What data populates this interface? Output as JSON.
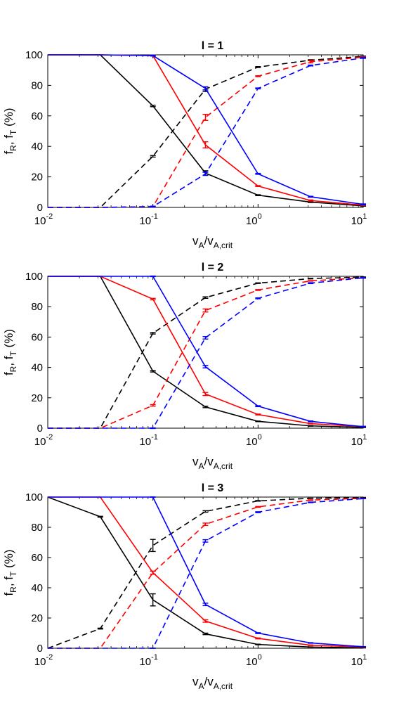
{
  "chart_data": [
    {
      "type": "line",
      "title": "l = 1",
      "xlabel": "vA/vA,crit",
      "ylabel": "fR, fT (%)",
      "x_scale": "log",
      "xlim": [
        0.01,
        10
      ],
      "ylim": [
        0,
        100
      ],
      "x_tick_labels": [
        "10",
        "10",
        "10"
      ],
      "x_tick_exponents": [
        "-2",
        "-1",
        "0"
      ],
      "x_tick_exponent_last": "1",
      "y_tick_labels": [
        "0",
        "20",
        "40",
        "60",
        "80",
        "100"
      ],
      "grid": false,
      "x": [
        0.01,
        0.0316,
        0.1,
        0.316,
        1.0,
        3.16,
        10.0
      ],
      "series": [
        {
          "color": "#000000",
          "dash": false,
          "values": [
            100,
            100,
            66.5,
            22.5,
            8,
            3.5,
            1
          ],
          "err": [
            0,
            0,
            0.5,
            1.5,
            0.3,
            0.3,
            0.2
          ]
        },
        {
          "color": "#000000",
          "dash": true,
          "values": [
            0,
            0,
            33.5,
            77.5,
            92,
            96.5,
            99
          ],
          "err": [
            0,
            0,
            0.5,
            1.5,
            0.3,
            0.3,
            0.2
          ]
        },
        {
          "color": "#ff0000",
          "dash": false,
          "values": [
            100,
            100,
            99.5,
            41,
            14,
            4.5,
            1.5
          ],
          "err": [
            0,
            0,
            0.3,
            2,
            0.3,
            0.4,
            0.2
          ]
        },
        {
          "color": "#ff0000",
          "dash": true,
          "values": [
            0,
            0,
            0.5,
            59,
            86,
            95.5,
            98.5
          ],
          "err": [
            0,
            0,
            0.3,
            2,
            0.3,
            0.8,
            0.3
          ]
        },
        {
          "color": "#0000ff",
          "dash": false,
          "values": [
            100,
            100,
            99.5,
            78,
            22,
            7,
            2
          ],
          "err": [
            0,
            0,
            0.3,
            1,
            0.3,
            0.3,
            0.3
          ]
        },
        {
          "color": "#0000ff",
          "dash": true,
          "values": [
            0,
            0,
            0.5,
            22,
            78,
            93,
            98
          ],
          "err": [
            0,
            0,
            0.3,
            1,
            0.3,
            0.3,
            0.3
          ]
        }
      ]
    },
    {
      "type": "line",
      "title": "l = 2",
      "xlabel": "vA/vA,crit",
      "ylabel": "fR, fT (%)",
      "x_scale": "log",
      "xlim": [
        0.01,
        10
      ],
      "ylim": [
        0,
        100
      ],
      "x_tick_labels": [
        "10",
        "10",
        "10"
      ],
      "x_tick_exponents": [
        "-2",
        "-1",
        "0"
      ],
      "x_tick_exponent_last": "1",
      "y_tick_labels": [
        "0",
        "20",
        "40",
        "60",
        "80",
        "100"
      ],
      "grid": false,
      "x": [
        0.01,
        0.0316,
        0.1,
        0.316,
        1.0,
        3.16,
        10.0
      ],
      "series": [
        {
          "color": "#000000",
          "dash": false,
          "values": [
            100,
            100,
            37.5,
            14,
            4.5,
            1.5,
            0.5
          ],
          "err": [
            0,
            0,
            0.5,
            0.5,
            0.2,
            0.2,
            0.1
          ]
        },
        {
          "color": "#000000",
          "dash": true,
          "values": [
            0,
            0,
            62.5,
            86,
            95.5,
            98.5,
            99.5
          ],
          "err": [
            0,
            0,
            0.5,
            0.5,
            0.2,
            0.2,
            0.1
          ]
        },
        {
          "color": "#ff0000",
          "dash": false,
          "values": [
            100,
            100,
            85,
            22.5,
            9,
            3,
            1
          ],
          "err": [
            0,
            0,
            0.5,
            1,
            0.3,
            0.2,
            0.2
          ]
        },
        {
          "color": "#ff0000",
          "dash": true,
          "values": [
            0,
            0,
            15,
            77.5,
            91,
            97,
            99
          ],
          "err": [
            0,
            0,
            0.5,
            1,
            0.3,
            0.2,
            0.2
          ]
        },
        {
          "color": "#0000ff",
          "dash": false,
          "values": [
            100,
            100,
            100,
            40.5,
            14.5,
            4.5,
            1
          ],
          "err": [
            0,
            0,
            0.2,
            0.8,
            0.3,
            0.3,
            0.2
          ]
        },
        {
          "color": "#0000ff",
          "dash": true,
          "values": [
            0,
            0,
            0,
            59.5,
            85.5,
            95.5,
            99
          ],
          "err": [
            0,
            0,
            0.2,
            0.8,
            0.3,
            0.3,
            0.2
          ]
        }
      ]
    },
    {
      "type": "line",
      "title": "l = 3",
      "xlabel": "vA/vA,crit",
      "ylabel": "fR, fT (%)",
      "x_scale": "log",
      "xlim": [
        0.01,
        10
      ],
      "ylim": [
        0,
        100
      ],
      "x_tick_labels": [
        "10",
        "10",
        "10"
      ],
      "x_tick_exponents": [
        "-2",
        "-1",
        "0"
      ],
      "x_tick_exponent_last": "1",
      "y_tick_labels": [
        "0",
        "20",
        "40",
        "60",
        "80",
        "100"
      ],
      "grid": false,
      "x": [
        0.01,
        0.0316,
        0.1,
        0.316,
        1.0,
        3.16,
        10.0
      ],
      "series": [
        {
          "color": "#000000",
          "dash": false,
          "values": [
            100,
            87,
            32,
            9.5,
            2.5,
            0.8,
            0.3
          ],
          "err": [
            0,
            0.3,
            4,
            0.5,
            0.2,
            0.1,
            0.1
          ]
        },
        {
          "color": "#000000",
          "dash": true,
          "values": [
            0,
            13,
            68,
            90.5,
            97.5,
            99.2,
            99.7
          ],
          "err": [
            0,
            0.3,
            4,
            0.5,
            0.2,
            0.1,
            0.1
          ]
        },
        {
          "color": "#ff0000",
          "dash": false,
          "values": [
            100,
            100,
            50,
            18,
            6.5,
            2,
            0.8
          ],
          "err": [
            0,
            0,
            1,
            0.8,
            0.3,
            0.2,
            0.1
          ]
        },
        {
          "color": "#ff0000",
          "dash": true,
          "values": [
            0,
            0,
            50,
            82,
            93.5,
            98,
            99.2
          ],
          "err": [
            0,
            0,
            1,
            0.8,
            0.3,
            0.2,
            0.1
          ]
        },
        {
          "color": "#0000ff",
          "dash": false,
          "values": [
            100,
            100,
            100,
            29,
            10,
            3.5,
            1
          ],
          "err": [
            0,
            0,
            0.1,
            0.8,
            0.3,
            0.2,
            0.1
          ]
        },
        {
          "color": "#0000ff",
          "dash": true,
          "values": [
            0,
            0,
            0,
            71,
            90,
            96.5,
            99
          ],
          "err": [
            0,
            0,
            0.1,
            0.8,
            0.3,
            0.2,
            0.1
          ]
        }
      ]
    }
  ]
}
